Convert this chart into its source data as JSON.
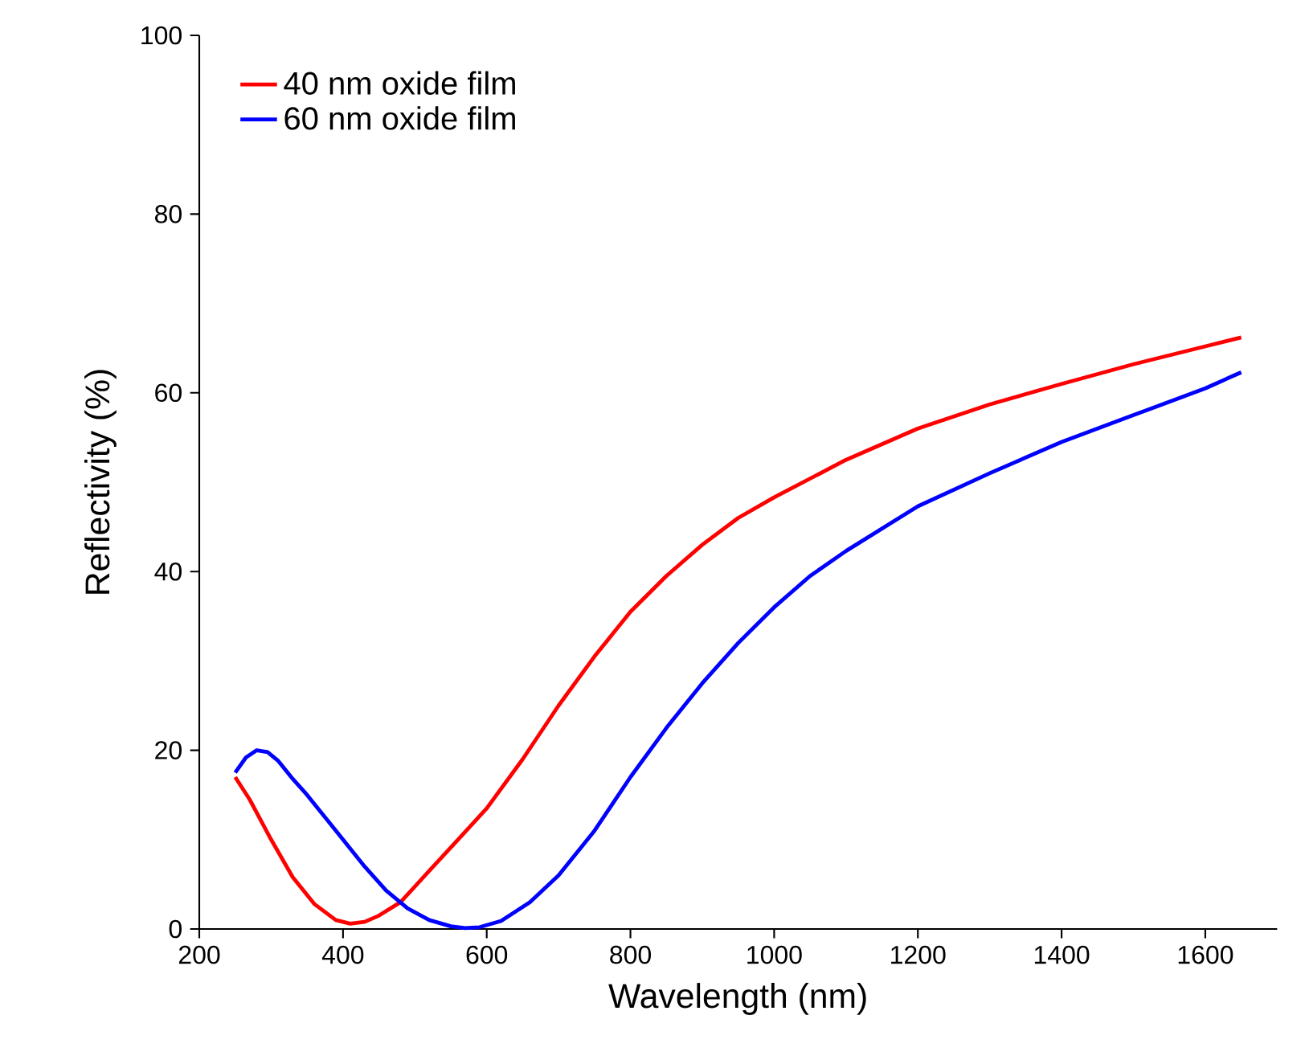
{
  "chart_data": {
    "type": "line",
    "xlabel": "Wavelength (nm)",
    "ylabel": "Reflectivity (%)",
    "xlim": [
      200,
      1700
    ],
    "ylim": [
      0,
      100
    ],
    "xticks": [
      200,
      400,
      600,
      800,
      1000,
      1200,
      1400,
      1600
    ],
    "yticks": [
      0,
      20,
      40,
      60,
      80,
      100
    ],
    "grid": false,
    "legend": "top left",
    "marker": "none",
    "line_style": "solid",
    "series": [
      {
        "name": "40 nm oxide film",
        "color": "#ff0000",
        "x": [
          250,
          270,
          300,
          330,
          360,
          390,
          410,
          430,
          450,
          480,
          520,
          560,
          600,
          650,
          700,
          750,
          800,
          850,
          900,
          950,
          1000,
          1100,
          1200,
          1300,
          1400,
          1500,
          1600,
          1650
        ],
        "values": [
          17,
          14.5,
          10,
          5.8,
          2.8,
          1,
          0.6,
          0.8,
          1.5,
          3,
          6.5,
          10,
          13.5,
          19,
          25,
          30.5,
          35.5,
          39.5,
          43,
          46,
          48.3,
          52.5,
          56,
          58.7,
          61,
          63.2,
          65.2,
          66.2
        ]
      },
      {
        "name": "60 nm oxide film",
        "color": "#0000ff",
        "x": [
          250,
          265,
          280,
          295,
          310,
          330,
          350,
          380,
          400,
          430,
          460,
          490,
          520,
          550,
          570,
          590,
          620,
          660,
          700,
          750,
          800,
          850,
          900,
          950,
          1000,
          1050,
          1100,
          1200,
          1300,
          1400,
          1500,
          1600,
          1650
        ],
        "values": [
          17.5,
          19.2,
          20,
          19.8,
          18.8,
          16.8,
          15,
          12,
          10,
          7,
          4.3,
          2.3,
          1,
          0.3,
          0.1,
          0.2,
          0.9,
          3,
          6,
          11,
          17,
          22.5,
          27.5,
          32,
          36,
          39.5,
          42.3,
          47.3,
          51,
          54.5,
          57.5,
          60.5,
          62.3
        ]
      }
    ]
  }
}
